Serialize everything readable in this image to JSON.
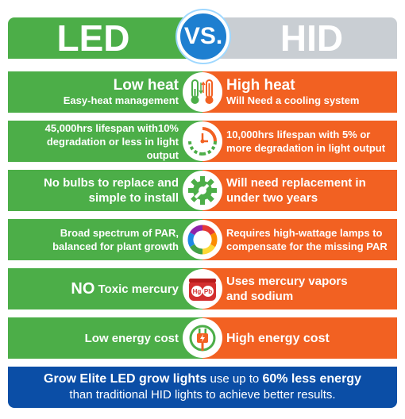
{
  "header": {
    "left": "LED",
    "vs": "VS.",
    "right": "HID"
  },
  "rows": [
    {
      "left_title": "Low heat",
      "left_sub": "Easy-heat management",
      "right_title": "High heat",
      "right_sub": "Will Need a cooling system",
      "icon": "thermometer-icon"
    },
    {
      "left_l1": "45,000hrs lifespan with10%",
      "left_l2": "degradation or less in light output",
      "right_l1": "10,000hrs lifespan with 5% or",
      "right_l2": "more degradation in light output",
      "icon": "timer-icon"
    },
    {
      "left_l1": "No bulbs to replace and",
      "left_l2": "simple to install",
      "right_l1": "Will need replacement in",
      "right_l2": "under two years",
      "icon": "wrench-gear-icon"
    },
    {
      "left_l1": "Broad spectrum of PAR,",
      "left_l2": "balanced for plant growth",
      "right_l1": "Requires high-wattage lamps to",
      "right_l2": "compensate for the missing PAR",
      "icon": "color-wheel-icon"
    },
    {
      "left_no": "NO",
      "left_rest": " Toxic mercury",
      "right_l1": "Uses mercury vapors",
      "right_l2": "and sodium",
      "icon": "mercury-lead-icon",
      "hg": "Hg",
      "pb": "Pb"
    },
    {
      "left_l1": "Low energy cost",
      "right_l1": "High energy cost",
      "icon": "energy-plug-icon"
    }
  ],
  "footer": {
    "brand": "Grow Elite LED grow lights",
    "mid": " use up to ",
    "pct": "60% less energy",
    "line2": "than traditional HID lights to achieve better results."
  },
  "colors": {
    "green": "#4cae48",
    "orange": "#f26122",
    "blue": "#0b4ea6",
    "gray": "#c9ced3"
  }
}
